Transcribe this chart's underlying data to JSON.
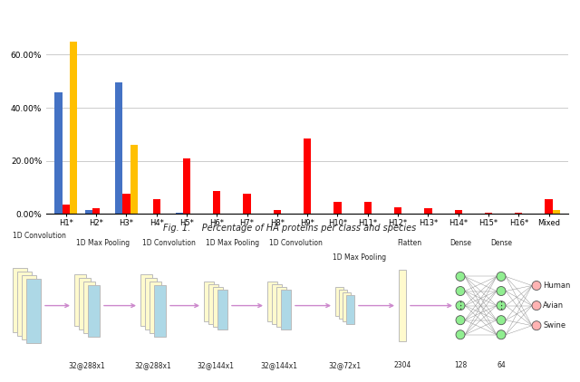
{
  "categories": [
    "H1*",
    "H2*",
    "H3*",
    "H4*",
    "H5*",
    "H6*",
    "H7*",
    "H8*",
    "H9*",
    "H10*",
    "H11*",
    "H12*",
    "H13*",
    "H14*",
    "H15*",
    "H16*",
    "Mixed"
  ],
  "human": [
    46.0,
    1.5,
    49.5,
    0.0,
    0.3,
    0.0,
    0.2,
    0.0,
    0.0,
    0.0,
    0.0,
    0.0,
    0.0,
    0.0,
    0.0,
    0.0,
    0.0
  ],
  "avian": [
    3.5,
    2.0,
    7.5,
    5.5,
    21.0,
    8.5,
    7.5,
    1.5,
    28.5,
    4.5,
    4.5,
    2.5,
    2.0,
    1.5,
    0.5,
    0.5,
    5.5
  ],
  "swine": [
    65.0,
    0.0,
    26.0,
    0.0,
    0.0,
    0.0,
    0.0,
    0.0,
    0.0,
    0.0,
    0.0,
    0.0,
    0.0,
    0.0,
    0.0,
    0.0,
    1.5
  ],
  "human_color": "#4472C4",
  "avian_color": "#FF0000",
  "swine_color": "#FFC000",
  "fig_caption": "Fig. 1.    Percentage of HA proteins per class and species",
  "yticks": [
    0.0,
    20.0,
    40.0,
    60.0
  ],
  "ytick_labels": [
    "0.00%",
    "20.00%",
    "40.00%",
    "60.00%"
  ],
  "bar_width": 0.25,
  "bg_color": "#FFFFFF",
  "grid_color": "#CCCCCC",
  "yellow_face": "#FFFACD",
  "blue_face": "#ADD8E6",
  "edge_color": "#BBBBBB",
  "arrow_color": "#CC88CC",
  "node_green": "#90EE90",
  "node_pink": "#FFB3B3",
  "line_color": "#888888",
  "nn_labels": {
    "conv1d_1": "1D Convolution",
    "maxpool1": "1D Max Pooling",
    "conv1d_2": "1D Convolution",
    "maxpool2": "1D Max Pooling",
    "conv1d_3": "1D Convolution",
    "maxpool3": "1D Max Pooling",
    "flatten": "Flatten",
    "dense1": "Dense",
    "dense2": "Dense",
    "dim1": "32@288x1",
    "dim2": "32@288x1",
    "dim3": "32@144x1",
    "dim4": "32@144x1",
    "dim5": "32@72x1",
    "dim_flat": "2304",
    "dim_d1": "128",
    "dim_d2": "64",
    "out1": "Human",
    "out2": "Avian",
    "out3": "Swine"
  }
}
